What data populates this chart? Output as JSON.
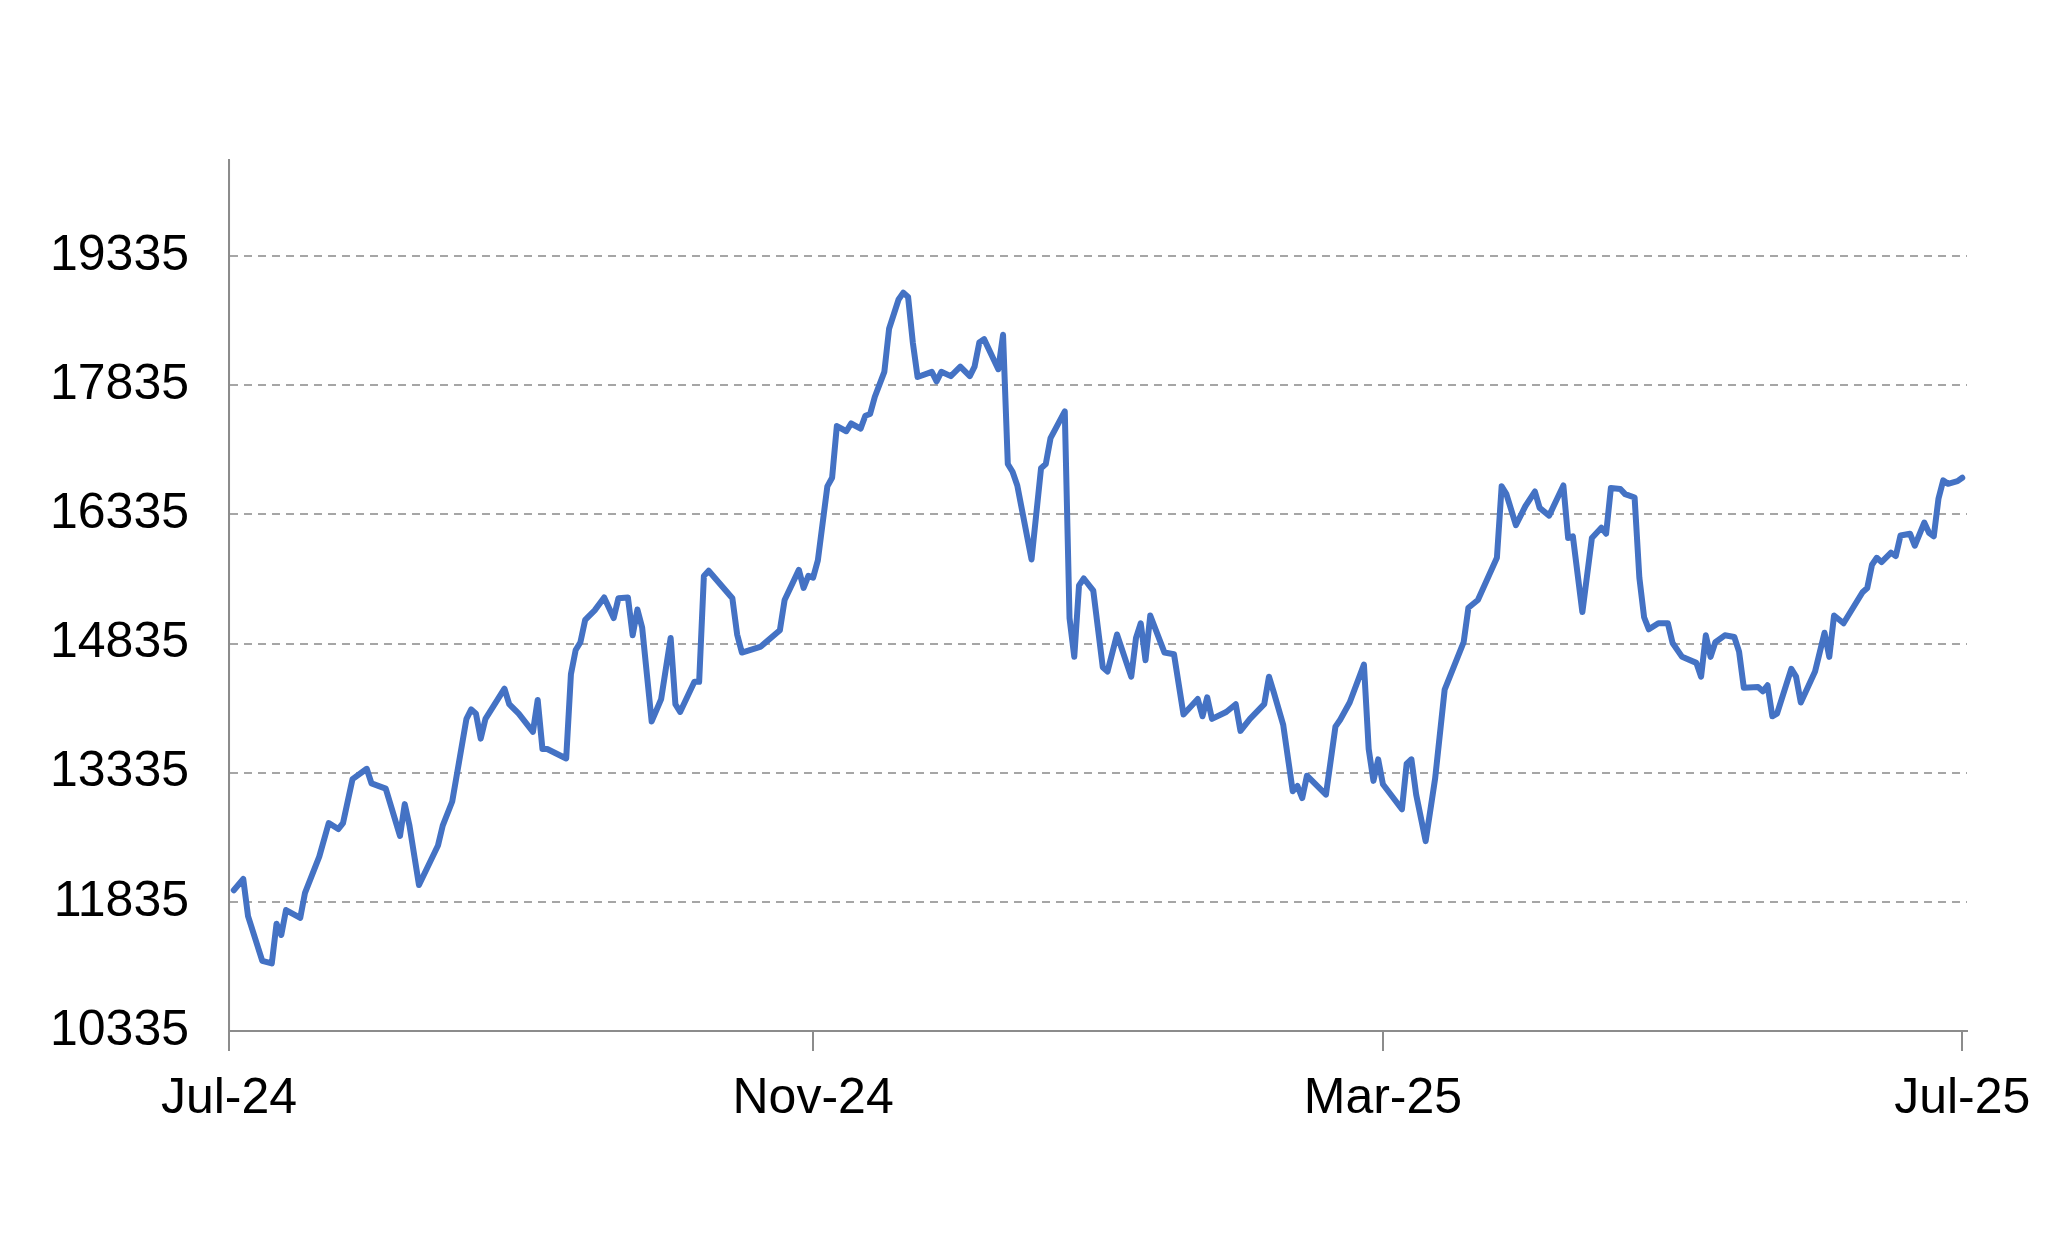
{
  "chart_data": {
    "type": "line",
    "grid": "y",
    "marker": "none",
    "line_style": "solid",
    "xlim": [
      "2024-07-01",
      "2025-07-02"
    ],
    "xticks": [
      {
        "value": "2024-07-01",
        "label": "Jul-24"
      },
      {
        "value": "2024-11-01",
        "label": "Nov-24"
      },
      {
        "value": "2025-03-01",
        "label": "Mar-25"
      },
      {
        "value": "2025-07-01",
        "label": "Jul-25"
      }
    ],
    "ylim": [
      10335,
      20450
    ],
    "yticks": [
      10335,
      11835,
      13335,
      14835,
      16335,
      17835,
      19335
    ],
    "x": [
      "2024-07-02",
      "2024-07-04",
      "2024-07-05",
      "2024-07-08",
      "2024-07-10",
      "2024-07-11",
      "2024-07-12",
      "2024-07-13",
      "2024-07-16",
      "2024-07-17",
      "2024-07-20",
      "2024-07-22",
      "2024-07-24",
      "2024-07-25",
      "2024-07-27",
      "2024-07-30",
      "2024-07-31",
      "2024-08-03",
      "2024-08-06",
      "2024-08-07",
      "2024-08-08",
      "2024-08-10",
      "2024-08-14",
      "2024-08-15",
      "2024-08-17",
      "2024-08-20",
      "2024-08-21",
      "2024-08-22",
      "2024-08-23",
      "2024-08-24",
      "2024-08-28",
      "2024-08-29",
      "2024-08-31",
      "2024-09-03",
      "2024-09-04",
      "2024-09-05",
      "2024-09-06",
      "2024-09-10",
      "2024-09-11",
      "2024-09-12",
      "2024-09-13",
      "2024-09-14",
      "2024-09-16",
      "2024-09-18",
      "2024-09-20",
      "2024-09-21",
      "2024-09-23",
      "2024-09-24",
      "2024-09-25",
      "2024-09-26",
      "2024-09-28",
      "2024-09-30",
      "2024-10-02",
      "2024-10-03",
      "2024-10-04",
      "2024-10-07",
      "2024-10-08",
      "2024-10-09",
      "2024-10-10",
      "2024-10-15",
      "2024-10-16",
      "2024-10-17",
      "2024-10-21",
      "2024-10-25",
      "2024-10-26",
      "2024-10-29",
      "2024-10-30",
      "2024-10-31",
      "2024-11-01",
      "2024-11-02",
      "2024-11-04",
      "2024-11-05",
      "2024-11-06",
      "2024-11-08",
      "2024-11-09",
      "2024-11-11",
      "2024-11-12",
      "2024-11-13",
      "2024-11-14",
      "2024-11-16",
      "2024-11-17",
      "2024-11-19",
      "2024-11-20",
      "2024-11-21",
      "2024-11-22",
      "2024-11-23",
      "2024-11-26",
      "2024-11-27",
      "2024-11-28",
      "2024-11-30",
      "2024-12-02",
      "2024-12-04",
      "2024-12-05",
      "2024-12-06",
      "2024-12-07",
      "2024-12-10",
      "2024-12-11",
      "2024-12-12",
      "2024-12-13",
      "2024-12-14",
      "2024-12-17",
      "2024-12-19",
      "2024-12-20",
      "2024-12-21",
      "2024-12-24",
      "2024-12-25",
      "2024-12-26",
      "2024-12-27",
      "2024-12-28",
      "2024-12-30",
      "2025-01-01",
      "2025-01-02",
      "2025-01-04",
      "2025-01-06",
      "2025-01-07",
      "2025-01-08",
      "2025-01-09",
      "2025-01-10",
      "2025-01-11",
      "2025-01-14",
      "2025-01-16",
      "2025-01-18",
      "2025-01-21",
      "2025-01-22",
      "2025-01-23",
      "2025-01-24",
      "2025-01-27",
      "2025-01-29",
      "2025-01-30",
      "2025-02-01",
      "2025-02-04",
      "2025-02-05",
      "2025-02-06",
      "2025-02-08",
      "2025-02-10",
      "2025-02-11",
      "2025-02-12",
      "2025-02-13",
      "2025-02-17",
      "2025-02-19",
      "2025-02-20",
      "2025-02-22",
      "2025-02-25",
      "2025-02-26",
      "2025-02-27",
      "2025-02-28",
      "2025-03-01",
      "2025-03-05",
      "2025-03-06",
      "2025-03-07",
      "2025-03-08",
      "2025-03-10",
      "2025-03-12",
      "2025-03-14",
      "2025-03-18",
      "2025-03-19",
      "2025-03-21",
      "2025-03-25",
      "2025-03-26",
      "2025-03-27",
      "2025-03-29",
      "2025-03-31",
      "2025-04-02",
      "2025-04-03",
      "2025-04-05",
      "2025-04-08",
      "2025-04-09",
      "2025-04-10",
      "2025-04-12",
      "2025-04-14",
      "2025-04-16",
      "2025-04-17",
      "2025-04-18",
      "2025-04-20",
      "2025-04-21",
      "2025-04-23",
      "2025-04-24",
      "2025-04-25",
      "2025-04-26",
      "2025-04-28",
      "2025-04-30",
      "2025-05-01",
      "2025-05-03",
      "2025-05-06",
      "2025-05-07",
      "2025-05-08",
      "2025-05-09",
      "2025-05-10",
      "2025-05-12",
      "2025-05-14",
      "2025-05-15",
      "2025-05-16",
      "2025-05-19",
      "2025-05-20",
      "2025-05-21",
      "2025-05-22",
      "2025-05-23",
      "2025-05-26",
      "2025-05-27",
      "2025-05-28",
      "2025-05-31",
      "2025-06-02",
      "2025-06-03",
      "2025-06-04",
      "2025-06-06",
      "2025-06-08",
      "2025-06-10",
      "2025-06-11",
      "2025-06-12",
      "2025-06-13",
      "2025-06-14",
      "2025-06-16",
      "2025-06-17",
      "2025-06-18",
      "2025-06-20",
      "2025-06-21",
      "2025-06-23",
      "2025-06-24",
      "2025-06-25",
      "2025-06-26",
      "2025-06-27",
      "2025-06-28",
      "2025-06-30",
      "2025-07-01"
    ],
    "series": [
      {
        "color": "#4472c4",
        "values": [
          11970,
          12100,
          11670,
          11150,
          11120,
          11580,
          11450,
          11740,
          11650,
          11940,
          12360,
          12750,
          12680,
          12750,
          13260,
          13380,
          13210,
          13150,
          12600,
          12970,
          12720,
          12030,
          12490,
          12720,
          13000,
          13960,
          14070,
          14020,
          13730,
          13960,
          14310,
          14130,
          14020,
          13810,
          14180,
          13610,
          13610,
          13500,
          14480,
          14760,
          14850,
          15110,
          15220,
          15370,
          15130,
          15360,
          15370,
          14930,
          15230,
          15020,
          13930,
          14190,
          14900,
          14130,
          14040,
          14390,
          14390,
          15620,
          15680,
          15360,
          14940,
          14730,
          14800,
          14990,
          15340,
          15690,
          15480,
          15620,
          15600,
          15800,
          16660,
          16760,
          17360,
          17300,
          17390,
          17330,
          17480,
          17500,
          17700,
          17990,
          18490,
          18830,
          18910,
          18860,
          18330,
          17930,
          17990,
          17880,
          17990,
          17940,
          18050,
          17940,
          18050,
          18330,
          18370,
          18020,
          18420,
          16920,
          16830,
          16670,
          15810,
          16870,
          16920,
          17220,
          17530,
          15130,
          14680,
          15510,
          15590,
          15450,
          14560,
          14510,
          14940,
          14610,
          14450,
          14900,
          15070,
          14640,
          15160,
          14730,
          14710,
          14010,
          14190,
          13990,
          14210,
          13960,
          14040,
          14130,
          13820,
          13960,
          14130,
          14450,
          14270,
          13890,
          13120,
          13180,
          13040,
          13300,
          13080,
          13870,
          13950,
          14150,
          14590,
          13610,
          13240,
          13490,
          13200,
          12910,
          13440,
          13490,
          13080,
          12540,
          13270,
          14300,
          14850,
          15250,
          15340,
          15830,
          16660,
          16570,
          16210,
          16430,
          16600,
          16410,
          16320,
          16670,
          16060,
          16080,
          15200,
          16060,
          16180,
          16110,
          16640,
          16630,
          16570,
          16530,
          15600,
          15140,
          15000,
          15070,
          15070,
          14840,
          14680,
          14610,
          14450,
          14930,
          14680,
          14850,
          14930,
          14910,
          14740,
          14320,
          14330,
          14280,
          14350,
          13990,
          14020,
          14540,
          14450,
          14150,
          14510,
          14960,
          14680,
          15160,
          15070,
          15250,
          15430,
          15480,
          15750,
          15830,
          15780,
          15890,
          15850,
          16090,
          16110,
          15970,
          16240,
          16120,
          16080,
          16520,
          16730,
          16690,
          16720,
          16760
        ]
      }
    ]
  }
}
